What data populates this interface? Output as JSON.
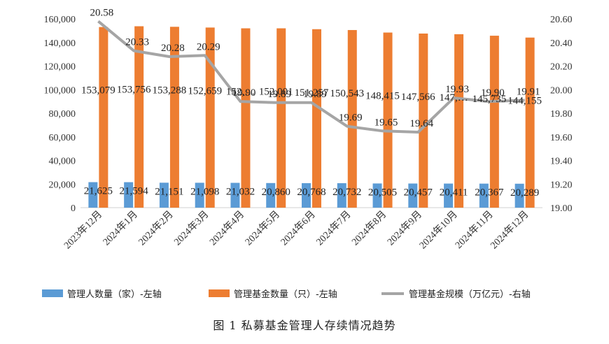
{
  "chart_data": {
    "type": "bar",
    "categories": [
      "2023年12月",
      "2024年1月",
      "2024年2月",
      "2024年3月",
      "2024年4月",
      "2024年5月",
      "2024年6月",
      "2024年7月",
      "2024年8月",
      "2024年9月",
      "2024年10月",
      "2024年11月",
      "2024年12月"
    ],
    "series": [
      {
        "name": "管理人数量（家）-左轴",
        "type": "bar",
        "axis": "left",
        "color": "#5B9BD5",
        "values": [
          21625,
          21594,
          21151,
          21098,
          21032,
          20860,
          20768,
          20732,
          20505,
          20457,
          20411,
          20367,
          20289
        ],
        "labels": [
          "21,625",
          "21,594",
          "21,151",
          "21,098",
          "21,032",
          "20,860",
          "20,768",
          "20,732",
          "20,505",
          "20,457",
          "20,411",
          "20,367",
          "20,289"
        ]
      },
      {
        "name": "管理基金数量（只）-左轴",
        "type": "bar",
        "axis": "left",
        "color": "#ED7D31",
        "values": [
          153079,
          153756,
          153288,
          152659,
          152000,
          152001,
          151257,
          150543,
          148415,
          147566,
          147000,
          145735,
          144155
        ],
        "labels": [
          "153,079",
          "153,756",
          "153,288",
          "152,659",
          "152,…",
          "152,001",
          "151,257",
          "150,543",
          "148,415",
          "147,566",
          "147,…",
          "145,735",
          "144,155"
        ]
      },
      {
        "name": "管理基金规模（万亿元）-右轴",
        "type": "line",
        "axis": "right",
        "color": "#A5A5A5",
        "values": [
          20.58,
          20.33,
          20.28,
          20.29,
          19.9,
          19.89,
          19.89,
          19.69,
          19.65,
          19.64,
          19.93,
          19.9,
          19.91
        ],
        "labels": [
          "20.58",
          "20.33",
          "20.28",
          "20.29",
          "19.90",
          "19.89",
          "19.89",
          "19.69",
          "19.65",
          "19.64",
          "19.93",
          "19.90",
          "19.91"
        ]
      }
    ],
    "y_left": {
      "min": 0,
      "max": 160000,
      "ticks": [
        "0",
        "20,000",
        "40,000",
        "60,000",
        "80,000",
        "100,000",
        "120,000",
        "140,000",
        "160,000"
      ]
    },
    "y_right": {
      "min": 19.0,
      "max": 20.6,
      "ticks": [
        "19.00",
        "19.20",
        "19.40",
        "19.60",
        "19.80",
        "20.00",
        "20.20",
        "20.40",
        "20.60"
      ]
    },
    "grid": false,
    "legend_position": "bottom",
    "caption": "图 1  私募基金管理人存续情况趋势"
  }
}
